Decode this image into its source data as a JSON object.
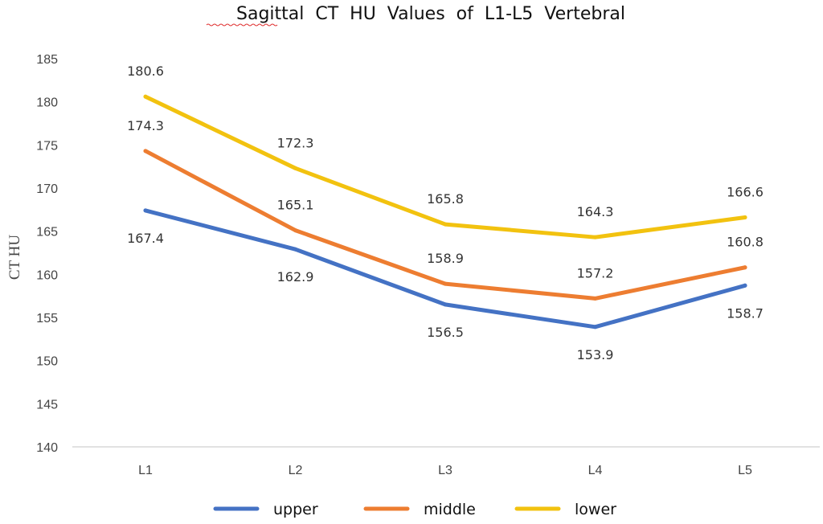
{
  "chart_data": {
    "type": "line",
    "title": "Sagittal  CT  HU  Values  of  L1-L5  Vertebral",
    "ylabel": "CT HU",
    "xlabel": "",
    "categories": [
      "L1",
      "L2",
      "L3",
      "L4",
      "L5"
    ],
    "ylim": [
      140,
      185
    ],
    "yticks": [
      140,
      145,
      150,
      155,
      160,
      165,
      170,
      175,
      180,
      185
    ],
    "grid": false,
    "legend_position": "bottom",
    "series": [
      {
        "name": "upper",
        "color": "#4472C4",
        "values": [
          167.4,
          162.9,
          156.5,
          153.9,
          158.7
        ],
        "label_side": [
          "below",
          "below",
          "below",
          "below",
          "below"
        ]
      },
      {
        "name": "middle",
        "color": "#ED7D31",
        "values": [
          174.3,
          165.1,
          158.9,
          157.2,
          160.8
        ],
        "label_side": [
          "above",
          "above",
          "above",
          "above",
          "above"
        ]
      },
      {
        "name": "lower",
        "color": "#F2C20F",
        "values": [
          180.6,
          172.3,
          165.8,
          164.3,
          166.6
        ],
        "label_side": [
          "above",
          "above",
          "above",
          "above",
          "above"
        ]
      }
    ]
  }
}
